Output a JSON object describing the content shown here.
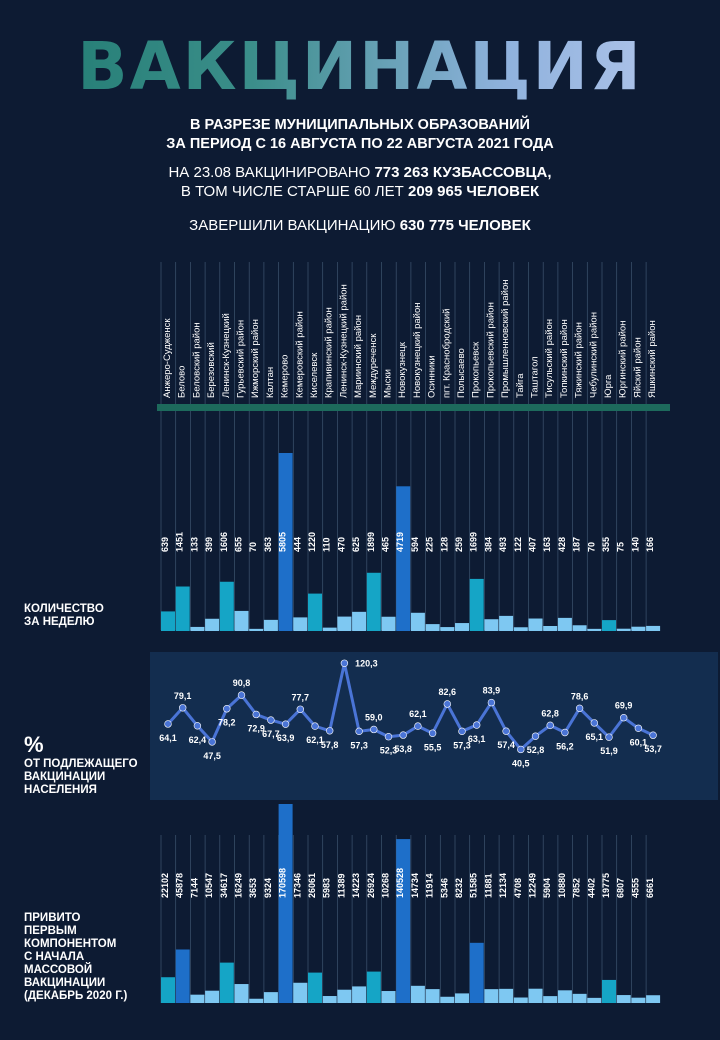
{
  "header": {
    "title": "ВАКЦИНАЦИЯ",
    "subtitle_line1": "В РАЗРЕЗЕ МУНИЦИПАЛЬНЫХ ОБРАЗОВАНИЙ",
    "subtitle_line2": "ЗА ПЕРИОД С 16 АВГУСТА ПО 22 АВГУСТА 2021 ГОДА",
    "info1_a": "НА 23.08 ВАКЦИНИРОВАНО ",
    "info1_b": "773 263 КУЗБАССОВЦА,",
    "info2_a": "В ТОМ ЧИСЛЕ СТАРШЕ 60 ЛЕТ ",
    "info2_b": "209 965 ЧЕЛОВЕК",
    "info3_a": "ЗАВЕРШИЛИ ВАКЦИНАЦИЮ ",
    "info3_b": "630 775 ЧЕЛОВЕК"
  },
  "labels": {
    "weekly_line1": "КОЛИЧЕСТВО",
    "weekly_line2": "ЗА НЕДЕЛЮ",
    "pct_symbol": "%",
    "pct_line1": "ОТ ПОДЛЕЖАЩЕГО",
    "pct_line2": "ВАКЦИНАЦИИ",
    "pct_line3": "НАСЕЛЕНИЯ",
    "first_line1": "ПРИВИТО",
    "first_line2": "ПЕРВЫМ",
    "first_line3": "КОМПОНЕНТОМ",
    "first_line4": "С НАЧАЛА",
    "first_line5": "МАССОВОЙ",
    "first_line6": "ВАКЦИНАЦИИ",
    "first_line7": "(ДЕКАБРЬ 2020 Г.)"
  },
  "colors": {
    "background": "#0d1b33",
    "panel": "#132d4f",
    "teal": "#15a5c6",
    "sky": "#7ec8f2",
    "blue": "#1e6fc9",
    "line": "#4a74d6",
    "green_bar": "#1d6a5c"
  },
  "chart_data": [
    {
      "type": "bar",
      "categories": [
        "Анжеро-Судженск",
        "Белово",
        "Беловский район",
        "Березовский",
        "Ленинск-Кузнецкий",
        "Гурьевский район",
        "Ижморский район",
        "Калтан",
        "Кемерово",
        "Кемеровский район",
        "Киселевск",
        "Крапивинский район",
        "Ленинск-Кузнецкий район",
        "Мариинский район",
        "Междуреченск",
        "Мыски",
        "Новокузнецк",
        "Новокузнецкий район",
        "Осинники",
        "пгт. Краснобродский",
        "Полысаево",
        "Прокопьевск",
        "Прокопьевский район",
        "Промышленновский район",
        "Тайга",
        "Таштагол",
        "Тисульский район",
        "Топкинский район",
        "Тяжинский район",
        "Чебулинский район",
        "Юрга",
        "Юргинский район",
        "Яйский район",
        "Яшкинский район"
      ],
      "series": [
        {
          "values": [
            639,
            1451,
            133,
            399,
            1606,
            655,
            70,
            363,
            5805,
            444,
            1220,
            110,
            470,
            625,
            1899,
            465,
            4719,
            594,
            225,
            128,
            259,
            1699,
            384,
            493,
            122,
            407,
            163,
            428,
            187,
            70,
            355,
            75,
            140,
            166
          ]
        }
      ]
    },
    {
      "type": "line",
      "categories": [
        "Анжеро-Судженск",
        "Белово",
        "Беловский район",
        "Березовский",
        "Ленинск-Кузнецкий",
        "Гурьевский район",
        "Ижморский район",
        "Калтан",
        "Кемерово",
        "Кемеровский район",
        "Киселевск",
        "Крапивинский район",
        "Ленинск-Кузнецкий район",
        "Мариинский район",
        "Междуреченск",
        "Мыски",
        "Новокузнецк",
        "Новокузнецкий район",
        "Осинники",
        "пгт. Краснобродский",
        "Полысаево",
        "Прокопьевск",
        "Прокопьевский район",
        "Промышленновский район",
        "Тайга",
        "Таштагол",
        "Тисульский район",
        "Топкинский район",
        "Тяжинский район",
        "Чебулинский район",
        "Юрга",
        "Юргинский район",
        "Яйский район",
        "Яшкинский район"
      ],
      "series": [
        {
          "values": [
            64.1,
            79.1,
            62.4,
            47.5,
            78.2,
            90.8,
            72.9,
            67.7,
            63.9,
            77.7,
            62.1,
            57.8,
            120.3,
            57.3,
            59.0,
            52.3,
            53.8,
            62.1,
            55.5,
            82.6,
            57.3,
            63.1,
            83.9,
            57.4,
            40.5,
            52.8,
            62.8,
            56.2,
            78.6,
            65.1,
            51.9,
            69.9,
            60.1,
            53.7
          ]
        }
      ],
      "value_labels": [
        "64,1",
        "79,1",
        "62,4",
        "47,5",
        "78,2",
        "90,8",
        "72,9",
        "67,7",
        "63,9",
        "77,7",
        "62,1",
        "57,8",
        "120,3",
        "57,3",
        "59,0",
        "52,3",
        "53,8",
        "62,1",
        "55,5",
        "82,6",
        "57,3",
        "63,1",
        "83,9",
        "57,4",
        "40,5",
        "52,8",
        "62,8",
        "56,2",
        "78,6",
        "65,1",
        "51,9",
        "69,9",
        "60,1",
        "53,7"
      ]
    },
    {
      "type": "bar",
      "categories": [
        "Анжеро-Судженск",
        "Белово",
        "Беловский район",
        "Березовский",
        "Ленинск-Кузнецкий",
        "Гурьевский район",
        "Ижморский район",
        "Калтан",
        "Кемерово",
        "Кемеровский район",
        "Киселевск",
        "Крапивинский район",
        "Ленинск-Кузнецкий район",
        "Мариинский район",
        "Междуреченск",
        "Мыски",
        "Новокузнецк",
        "Новокузнецкий район",
        "Осинники",
        "пгт. Краснобродский",
        "Полысаево",
        "Прокопьевск",
        "Прокопьевский район",
        "Промышленновский район",
        "Тайга",
        "Таштагол",
        "Тисульский район",
        "Топкинский район",
        "Тяжинский район",
        "Чебулинский район",
        "Юрга",
        "Юргинский район",
        "Яйский район",
        "Яшкинский район"
      ],
      "series": [
        {
          "values": [
            22102,
            45878,
            7144,
            10547,
            34617,
            16249,
            3653,
            9324,
            170598,
            17346,
            26061,
            5983,
            11389,
            14223,
            26924,
            10268,
            140528,
            14734,
            11914,
            5346,
            8232,
            51585,
            11881,
            12134,
            4708,
            12249,
            5904,
            10880,
            7852,
            4402,
            19775,
            6807,
            4555,
            6661
          ]
        }
      ]
    }
  ]
}
